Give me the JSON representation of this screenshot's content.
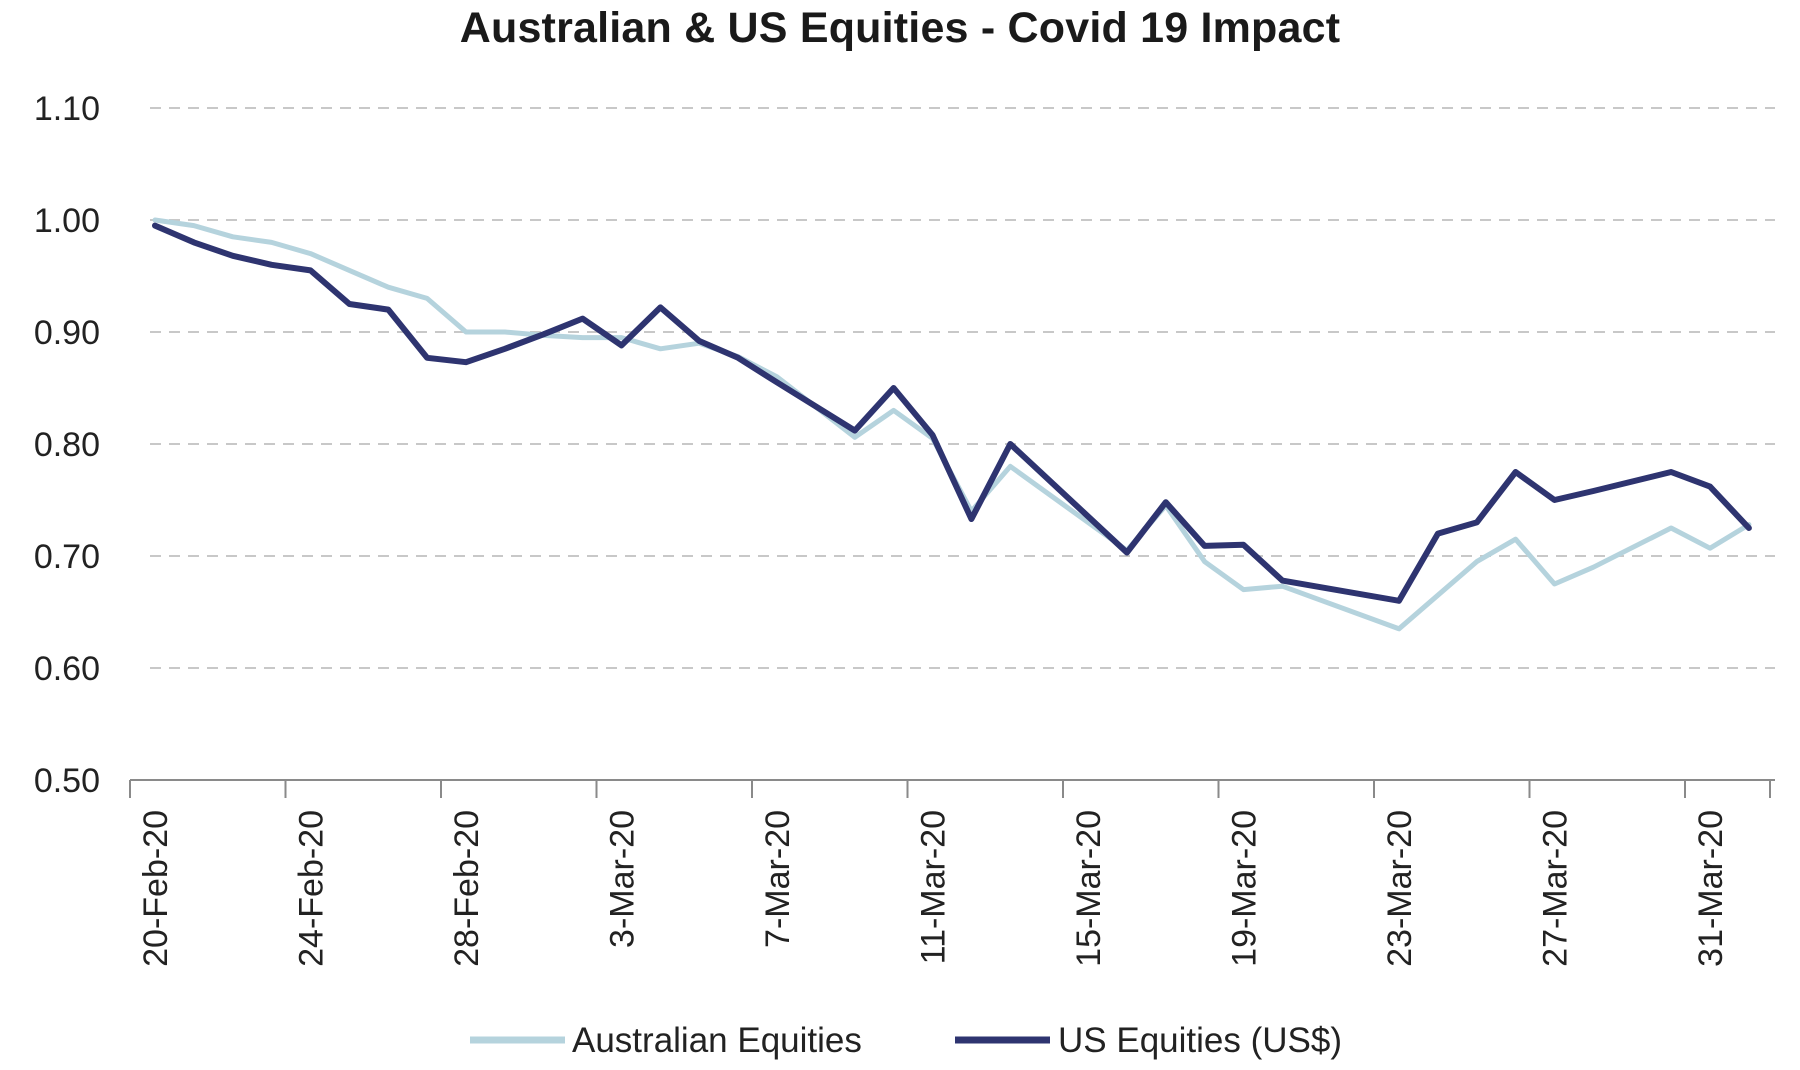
{
  "chart_data": {
    "type": "line",
    "title": "Australian & US Equities - Covid 19 Impact",
    "xlabel": "",
    "ylabel": "",
    "ylim": [
      0.5,
      1.1
    ],
    "yticks": [
      "1.10",
      "1.00",
      "0.90",
      "0.80",
      "0.70",
      "0.60",
      "0.50"
    ],
    "ytick_values": [
      1.1,
      1.0,
      0.9,
      0.8,
      0.7,
      0.6,
      0.5
    ],
    "xticks": [
      "20-Feb-20",
      "24-Feb-20",
      "28-Feb-20",
      "3-Mar-20",
      "7-Mar-20",
      "11-Mar-20",
      "15-Mar-20",
      "19-Mar-20",
      "23-Mar-20",
      "27-Mar-20",
      "31-Mar-20"
    ],
    "grid": true,
    "legend_position": "bottom",
    "x": [
      "20-Feb-20",
      "21-Feb-20",
      "24-Feb-20",
      "25-Feb-20",
      "26-Feb-20",
      "27-Feb-20",
      "28-Feb-20",
      "2-Mar-20",
      "3-Mar-20",
      "4-Mar-20",
      "5-Mar-20",
      "6-Mar-20",
      "9-Mar-20",
      "10-Mar-20",
      "11-Mar-20",
      "12-Mar-20",
      "13-Mar-20",
      "16-Mar-20",
      "17-Mar-20",
      "18-Mar-20",
      "19-Mar-20",
      "20-Mar-20",
      "23-Mar-20",
      "24-Mar-20",
      "25-Mar-20",
      "26-Mar-20",
      "27-Mar-20",
      "30-Mar-20",
      "31-Mar-20",
      "1-Apr-20"
    ],
    "series": [
      {
        "name": "Australian Equities",
        "color": "#b5d3dd",
        "points": [
          [
            "20-Feb-20",
            1.0
          ],
          [
            "21-Feb-20",
            0.995
          ],
          [
            "22-Feb-20",
            0.985
          ],
          [
            "23-Feb-20",
            0.98
          ],
          [
            "24-Feb-20",
            0.97
          ],
          [
            "25-Feb-20",
            0.955
          ],
          [
            "26-Feb-20",
            0.94
          ],
          [
            "27-Feb-20",
            0.93
          ],
          [
            "28-Feb-20",
            0.9
          ],
          [
            "29-Feb-20",
            0.9
          ],
          [
            "1-Mar-20",
            0.897
          ],
          [
            "2-Mar-20",
            0.895
          ],
          [
            "3-Mar-20",
            0.895
          ],
          [
            "4-Mar-20",
            0.885
          ],
          [
            "5-Mar-20",
            0.89
          ],
          [
            "6-Mar-20",
            0.878
          ],
          [
            "7-Mar-20",
            0.86
          ],
          [
            "9-Mar-20",
            0.806
          ],
          [
            "10-Mar-20",
            0.83
          ],
          [
            "11-Mar-20",
            0.805
          ],
          [
            "12-Mar-20",
            0.74
          ],
          [
            "13-Mar-20",
            0.78
          ],
          [
            "16-Mar-20",
            0.705
          ],
          [
            "17-Mar-20",
            0.745
          ],
          [
            "18-Mar-20",
            0.695
          ],
          [
            "19-Mar-20",
            0.67
          ],
          [
            "20-Mar-20",
            0.673
          ],
          [
            "23-Mar-20",
            0.635
          ],
          [
            "24-Mar-20",
            0.665
          ],
          [
            "25-Mar-20",
            0.695
          ],
          [
            "26-Mar-20",
            0.715
          ],
          [
            "27-Mar-20",
            0.675
          ],
          [
            "28-Mar-20",
            0.69
          ],
          [
            "30-Mar-20",
            0.725
          ],
          [
            "31-Mar-20",
            0.707
          ],
          [
            "1-Apr-20",
            0.728
          ]
        ]
      },
      {
        "name": "US Equities (US$)",
        "color": "#2e3470",
        "points": [
          [
            "20-Feb-20",
            0.995
          ],
          [
            "21-Feb-20",
            0.98
          ],
          [
            "22-Feb-20",
            0.968
          ],
          [
            "23-Feb-20",
            0.96
          ],
          [
            "24-Feb-20",
            0.955
          ],
          [
            "25-Feb-20",
            0.925
          ],
          [
            "26-Feb-20",
            0.92
          ],
          [
            "27-Feb-20",
            0.877
          ],
          [
            "28-Feb-20",
            0.873
          ],
          [
            "29-Feb-20",
            0.885
          ],
          [
            "1-Mar-20",
            0.898
          ],
          [
            "2-Mar-20",
            0.912
          ],
          [
            "3-Mar-20",
            0.888
          ],
          [
            "4-Mar-20",
            0.922
          ],
          [
            "5-Mar-20",
            0.892
          ],
          [
            "6-Mar-20",
            0.877
          ],
          [
            "7-Mar-20",
            0.855
          ],
          [
            "9-Mar-20",
            0.812
          ],
          [
            "10-Mar-20",
            0.85
          ],
          [
            "11-Mar-20",
            0.808
          ],
          [
            "12-Mar-20",
            0.733
          ],
          [
            "13-Mar-20",
            0.8
          ],
          [
            "16-Mar-20",
            0.703
          ],
          [
            "17-Mar-20",
            0.748
          ],
          [
            "18-Mar-20",
            0.709
          ],
          [
            "19-Mar-20",
            0.71
          ],
          [
            "20-Mar-20",
            0.678
          ],
          [
            "23-Mar-20",
            0.66
          ],
          [
            "24-Mar-20",
            0.72
          ],
          [
            "25-Mar-20",
            0.73
          ],
          [
            "26-Mar-20",
            0.775
          ],
          [
            "27-Mar-20",
            0.75
          ],
          [
            "28-Mar-20",
            0.758
          ],
          [
            "30-Mar-20",
            0.775
          ],
          [
            "31-Mar-20",
            0.762
          ],
          [
            "1-Apr-20",
            0.725
          ]
        ]
      }
    ]
  }
}
